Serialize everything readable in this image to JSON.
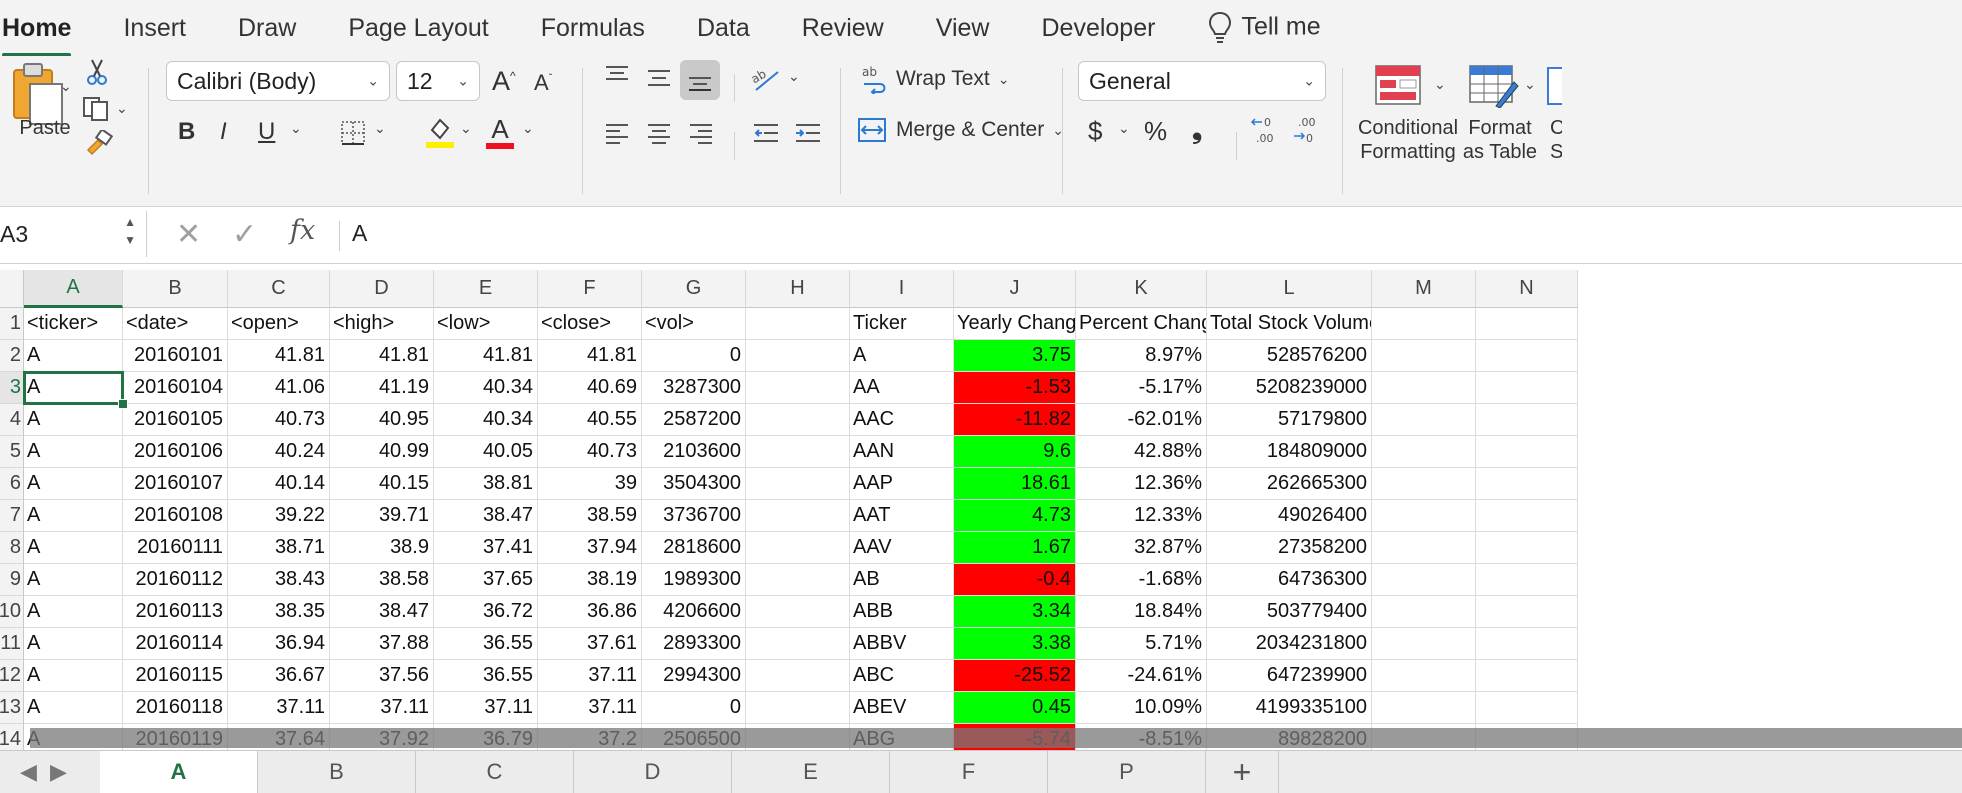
{
  "ribbon_tabs": [
    "Home",
    "Insert",
    "Draw",
    "Page Layout",
    "Formulas",
    "Data",
    "Review",
    "View",
    "Developer",
    "Tell me"
  ],
  "ribbon": {
    "paste_label": "Paste",
    "font_name": "Calibri (Body)",
    "font_size": "12",
    "bold": "B",
    "italic": "I",
    "underline": "U",
    "wrap_text": "Wrap Text",
    "merge_center": "Merge & Center",
    "number_format": "General",
    "currency": "$",
    "percent": "%",
    "comma": "❟",
    "cond_format_1": "Conditional",
    "cond_format_2": "Formatting",
    "format_table_1": "Format",
    "format_table_2": "as Table",
    "cell_styles_1": "C",
    "cell_styles_2": "St"
  },
  "formula_bar": {
    "name_box": "A3",
    "fx": "fx",
    "value": "A"
  },
  "grid": {
    "columns": [
      "A",
      "B",
      "C",
      "D",
      "E",
      "F",
      "G",
      "H",
      "I",
      "J",
      "K",
      "L",
      "M",
      "N"
    ],
    "selected_column": "A",
    "row_labels": [
      "1",
      "2",
      "3",
      "4",
      "5",
      "6",
      "7",
      "8",
      "9",
      "10",
      "11",
      "12",
      "13",
      "14"
    ],
    "selected_row": "3",
    "header_row": [
      "<ticker>",
      "<date>",
      "<open>",
      "<high>",
      "<low>",
      "<close>",
      "<vol>",
      "",
      "Ticker",
      "Yearly Change",
      "Percent Change",
      "Total Stock Volume"
    ],
    "rows": [
      [
        "A",
        "20160101",
        "41.81",
        "41.81",
        "41.81",
        "41.81",
        "0",
        "",
        "A",
        "3.75",
        "8.97%",
        "528576200"
      ],
      [
        "A",
        "20160104",
        "41.06",
        "41.19",
        "40.34",
        "40.69",
        "3287300",
        "",
        "AA",
        "-1.53",
        "-5.17%",
        "5208239000"
      ],
      [
        "A",
        "20160105",
        "40.73",
        "40.95",
        "40.34",
        "40.55",
        "2587200",
        "",
        "AAC",
        "-11.82",
        "-62.01%",
        "57179800"
      ],
      [
        "A",
        "20160106",
        "40.24",
        "40.99",
        "40.05",
        "40.73",
        "2103600",
        "",
        "AAN",
        "9.6",
        "42.88%",
        "184809000"
      ],
      [
        "A",
        "20160107",
        "40.14",
        "40.15",
        "38.81",
        "39",
        "3504300",
        "",
        "AAP",
        "18.61",
        "12.36%",
        "262665300"
      ],
      [
        "A",
        "20160108",
        "39.22",
        "39.71",
        "38.47",
        "38.59",
        "3736700",
        "",
        "AAT",
        "4.73",
        "12.33%",
        "49026400"
      ],
      [
        "A",
        "20160111",
        "38.71",
        "38.9",
        "37.41",
        "37.94",
        "2818600",
        "",
        "AAV",
        "1.67",
        "32.87%",
        "27358200"
      ],
      [
        "A",
        "20160112",
        "38.43",
        "38.58",
        "37.65",
        "38.19",
        "1989300",
        "",
        "AB",
        "-0.4",
        "-1.68%",
        "64736300"
      ],
      [
        "A",
        "20160113",
        "38.35",
        "38.47",
        "36.72",
        "36.86",
        "4206600",
        "",
        "ABB",
        "3.34",
        "18.84%",
        "503779400"
      ],
      [
        "A",
        "20160114",
        "36.94",
        "37.88",
        "36.55",
        "37.61",
        "2893300",
        "",
        "ABBV",
        "3.38",
        "5.71%",
        "2034231800"
      ],
      [
        "A",
        "20160115",
        "36.67",
        "37.56",
        "36.55",
        "37.11",
        "2994300",
        "",
        "ABC",
        "-25.52",
        "-24.61%",
        "647239900"
      ],
      [
        "A",
        "20160118",
        "37.11",
        "37.11",
        "37.11",
        "37.11",
        "0",
        "",
        "ABEV",
        "0.45",
        "10.09%",
        "4199335100"
      ],
      [
        "A",
        "20160119",
        "37.64",
        "37.92",
        "36.79",
        "37.2",
        "2506500",
        "",
        "ABG",
        "-5.74",
        "-8.51%",
        "89828200"
      ]
    ],
    "positive_color": "#00ff00",
    "negative_color": "#ff0000"
  },
  "sheets": [
    "A",
    "B",
    "C",
    "D",
    "E",
    "F",
    "P"
  ],
  "active_sheet": "A",
  "add_sheet": "+"
}
